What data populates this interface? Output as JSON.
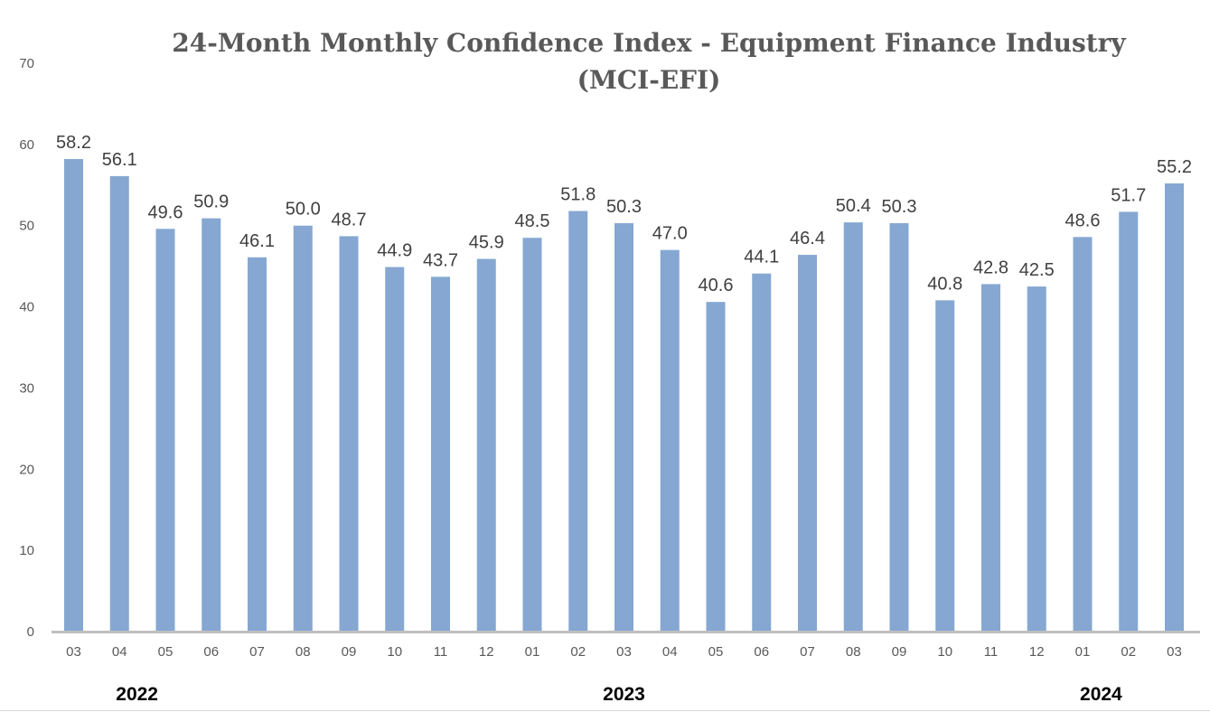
{
  "chart_data": {
    "type": "bar",
    "title": "24-Month Monthly Confidence Index - Equipment Finance Industry",
    "subtitle": "(MCI-EFI)",
    "categories": [
      "03",
      "04",
      "05",
      "06",
      "07",
      "08",
      "09",
      "10",
      "11",
      "12",
      "01",
      "02",
      "03",
      "04",
      "05",
      "06",
      "07",
      "08",
      "09",
      "10",
      "11",
      "12",
      "01",
      "02",
      "03"
    ],
    "values": [
      58.2,
      56.1,
      49.6,
      50.9,
      46.1,
      50.0,
      48.7,
      44.9,
      43.7,
      45.9,
      48.5,
      51.8,
      50.3,
      47.0,
      40.6,
      44.1,
      46.4,
      50.4,
      50.3,
      40.8,
      42.8,
      42.5,
      48.6,
      51.7,
      55.2
    ],
    "data_labels": [
      "58.2",
      "56.1",
      "49.6",
      "50.9",
      "46.1",
      "50.0",
      "48.7",
      "44.9",
      "43.7",
      "45.9",
      "48.5",
      "51.8",
      "50.3",
      "47.0",
      "40.6",
      "44.1",
      "46.4",
      "50.4",
      "50.3",
      "40.8",
      "42.8",
      "42.5",
      "48.6",
      "51.7",
      "55.2"
    ],
    "year_labels": [
      {
        "label": "2022",
        "category_index": 1.5
      },
      {
        "label": "2023",
        "category_index": 12
      },
      {
        "label": "2024",
        "category_index": 22.5
      }
    ],
    "xlabel": "",
    "ylabel": "",
    "ylim": [
      0,
      70
    ],
    "yticks": [
      0,
      10,
      20,
      30,
      40,
      50,
      60,
      70
    ],
    "grid": false,
    "legend": "none",
    "bar_color": "#85A7D2",
    "axis_color": "#BFBFBF"
  }
}
